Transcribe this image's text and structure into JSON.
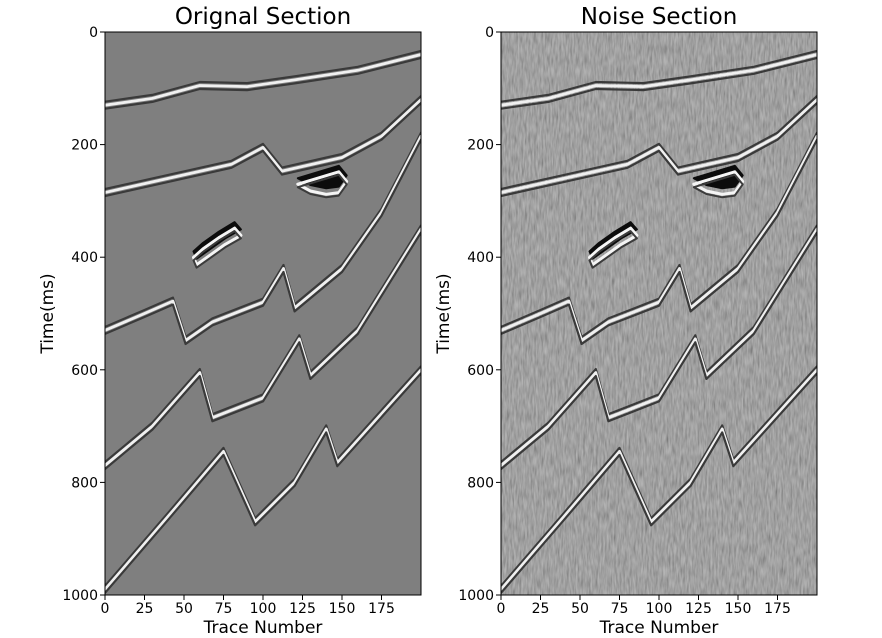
{
  "figure": {
    "background": "#ffffff",
    "colormap": "gray"
  },
  "chart_data": [
    {
      "type": "heatmap",
      "title": "Orignal Section",
      "xlabel": "Trace Number",
      "ylabel": "Time(ms)",
      "xlim": [
        0,
        200
      ],
      "ylim": [
        1000,
        0
      ],
      "xticks": [
        0,
        25,
        50,
        75,
        100,
        125,
        150,
        175
      ],
      "yticks": [
        0,
        200,
        400,
        600,
        800,
        1000
      ],
      "grid": false,
      "background_amplitude": "#7f7f7f",
      "noise": false,
      "events": [
        {
          "kind": "reflector",
          "points": [
            [
              0,
              130
            ],
            [
              30,
              118
            ],
            [
              60,
              95
            ],
            [
              90,
              97
            ],
            [
              120,
              85
            ],
            [
              160,
              68
            ],
            [
              200,
              40
            ]
          ]
        },
        {
          "kind": "reflector",
          "points": [
            [
              0,
              285
            ],
            [
              40,
              260
            ],
            [
              80,
              235
            ],
            [
              100,
              205
            ],
            [
              112,
              247
            ],
            [
              150,
              223
            ],
            [
              175,
              185
            ],
            [
              200,
              120
            ]
          ]
        },
        {
          "kind": "lens",
          "points": [
            [
              122,
              265
            ],
            [
              130,
              277
            ],
            [
              140,
              283
            ],
            [
              148,
              280
            ],
            [
              153,
              260
            ],
            [
              148,
              243
            ]
          ]
        },
        {
          "kind": "lens",
          "points": [
            [
              56,
              395
            ],
            [
              62,
              380
            ],
            [
              72,
              360
            ],
            [
              82,
              343
            ],
            [
              86,
              356
            ],
            [
              76,
              372
            ],
            [
              66,
              392
            ],
            [
              58,
              408
            ]
          ]
        },
        {
          "kind": "reflector",
          "points": [
            [
              0,
              530
            ],
            [
              25,
              500
            ],
            [
              43,
              478
            ],
            [
              51,
              548
            ],
            [
              68,
              515
            ],
            [
              100,
              480
            ],
            [
              113,
              420
            ],
            [
              120,
              490
            ],
            [
              150,
              420
            ],
            [
              175,
              320
            ],
            [
              200,
              185
            ]
          ]
        },
        {
          "kind": "reflector",
          "points": [
            [
              0,
              770
            ],
            [
              30,
              700
            ],
            [
              60,
              605
            ],
            [
              68,
              685
            ],
            [
              100,
              650
            ],
            [
              123,
              545
            ],
            [
              130,
              610
            ],
            [
              160,
              530
            ],
            [
              200,
              350
            ]
          ]
        },
        {
          "kind": "reflector",
          "points": [
            [
              0,
              990
            ],
            [
              40,
              860
            ],
            [
              75,
              745
            ],
            [
              95,
              870
            ],
            [
              120,
              800
            ],
            [
              140,
              705
            ],
            [
              147,
              765
            ],
            [
              200,
              600
            ]
          ]
        }
      ]
    },
    {
      "type": "heatmap",
      "title": "Noise Section",
      "xlabel": "Trace Number",
      "ylabel": "Time(ms)",
      "xlim": [
        0,
        200
      ],
      "ylim": [
        1000,
        0
      ],
      "xticks": [
        0,
        25,
        50,
        75,
        100,
        125,
        150,
        175
      ],
      "yticks": [
        0,
        200,
        400,
        600,
        800,
        1000
      ],
      "grid": false,
      "background_amplitude": "#7f7f7f",
      "noise": true,
      "events": [
        {
          "kind": "reflector",
          "points": [
            [
              0,
              130
            ],
            [
              30,
              118
            ],
            [
              60,
              95
            ],
            [
              90,
              97
            ],
            [
              120,
              85
            ],
            [
              160,
              68
            ],
            [
              200,
              40
            ]
          ]
        },
        {
          "kind": "reflector",
          "points": [
            [
              0,
              285
            ],
            [
              40,
              260
            ],
            [
              80,
              235
            ],
            [
              100,
              205
            ],
            [
              112,
              247
            ],
            [
              150,
              223
            ],
            [
              175,
              185
            ],
            [
              200,
              120
            ]
          ]
        },
        {
          "kind": "lens",
          "points": [
            [
              122,
              265
            ],
            [
              130,
              277
            ],
            [
              140,
              283
            ],
            [
              148,
              280
            ],
            [
              153,
              260
            ],
            [
              148,
              243
            ]
          ]
        },
        {
          "kind": "lens",
          "points": [
            [
              56,
              395
            ],
            [
              62,
              380
            ],
            [
              72,
              360
            ],
            [
              82,
              343
            ],
            [
              86,
              356
            ],
            [
              76,
              372
            ],
            [
              66,
              392
            ],
            [
              58,
              408
            ]
          ]
        },
        {
          "kind": "reflector",
          "points": [
            [
              0,
              530
            ],
            [
              25,
              500
            ],
            [
              43,
              478
            ],
            [
              51,
              548
            ],
            [
              68,
              515
            ],
            [
              100,
              480
            ],
            [
              113,
              420
            ],
            [
              120,
              490
            ],
            [
              150,
              420
            ],
            [
              175,
              320
            ],
            [
              200,
              185
            ]
          ]
        },
        {
          "kind": "reflector",
          "points": [
            [
              0,
              770
            ],
            [
              30,
              700
            ],
            [
              60,
              605
            ],
            [
              68,
              685
            ],
            [
              100,
              650
            ],
            [
              123,
              545
            ],
            [
              130,
              610
            ],
            [
              160,
              530
            ],
            [
              200,
              350
            ]
          ]
        },
        {
          "kind": "reflector",
          "points": [
            [
              0,
              990
            ],
            [
              40,
              860
            ],
            [
              75,
              745
            ],
            [
              95,
              870
            ],
            [
              120,
              800
            ],
            [
              140,
              705
            ],
            [
              147,
              765
            ],
            [
              200,
              600
            ]
          ]
        }
      ]
    }
  ]
}
